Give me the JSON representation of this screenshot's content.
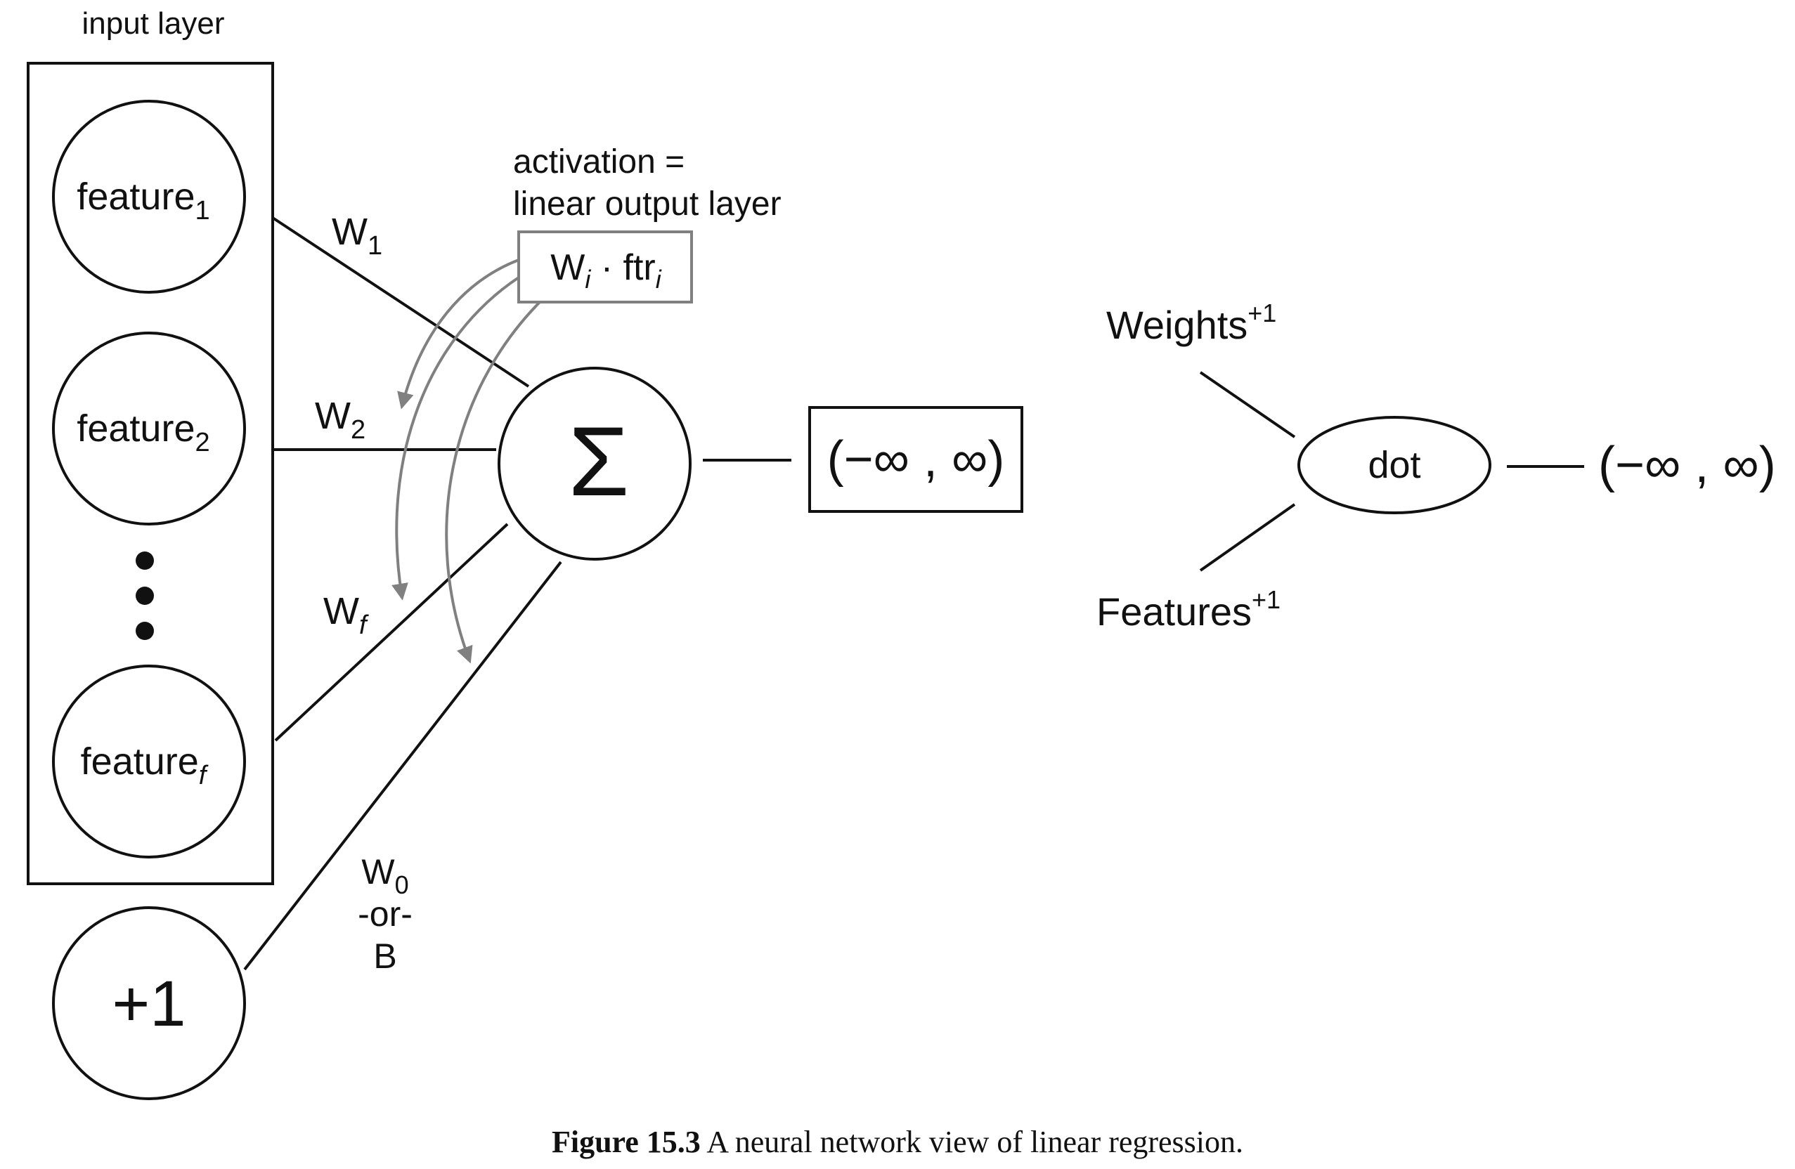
{
  "diagram": {
    "input_layer_label": "input layer",
    "feature1": {
      "base": "feature",
      "sub": "1"
    },
    "feature2": {
      "base": "feature",
      "sub": "2"
    },
    "featuref": {
      "base": "feature",
      "sub": "f"
    },
    "bias_node": "+1",
    "weight_labels": {
      "w1": {
        "base": "W",
        "sub": "1"
      },
      "w2": {
        "base": "W",
        "sub": "2"
      },
      "wf": {
        "base": "W",
        "sub": "f"
      },
      "w0": {
        "base": "W",
        "sub": "0"
      },
      "or": "-or-",
      "b": "B"
    },
    "activation_line1": "activation =",
    "activation_line2": "linear output layer",
    "formula": {
      "w": "W",
      "i1": "i",
      "dot": " · ftr",
      "i2": "i"
    },
    "sum_symbol": "Σ",
    "output_range": "(−∞ , ∞)",
    "weights_label": "Weights",
    "features_label": "Features",
    "superscript": "+1",
    "dot_label": "dot",
    "right_output_range": "(−∞ , ∞)"
  },
  "caption": {
    "label": "Figure 15.3",
    "text": " A neural network view of linear regression."
  }
}
